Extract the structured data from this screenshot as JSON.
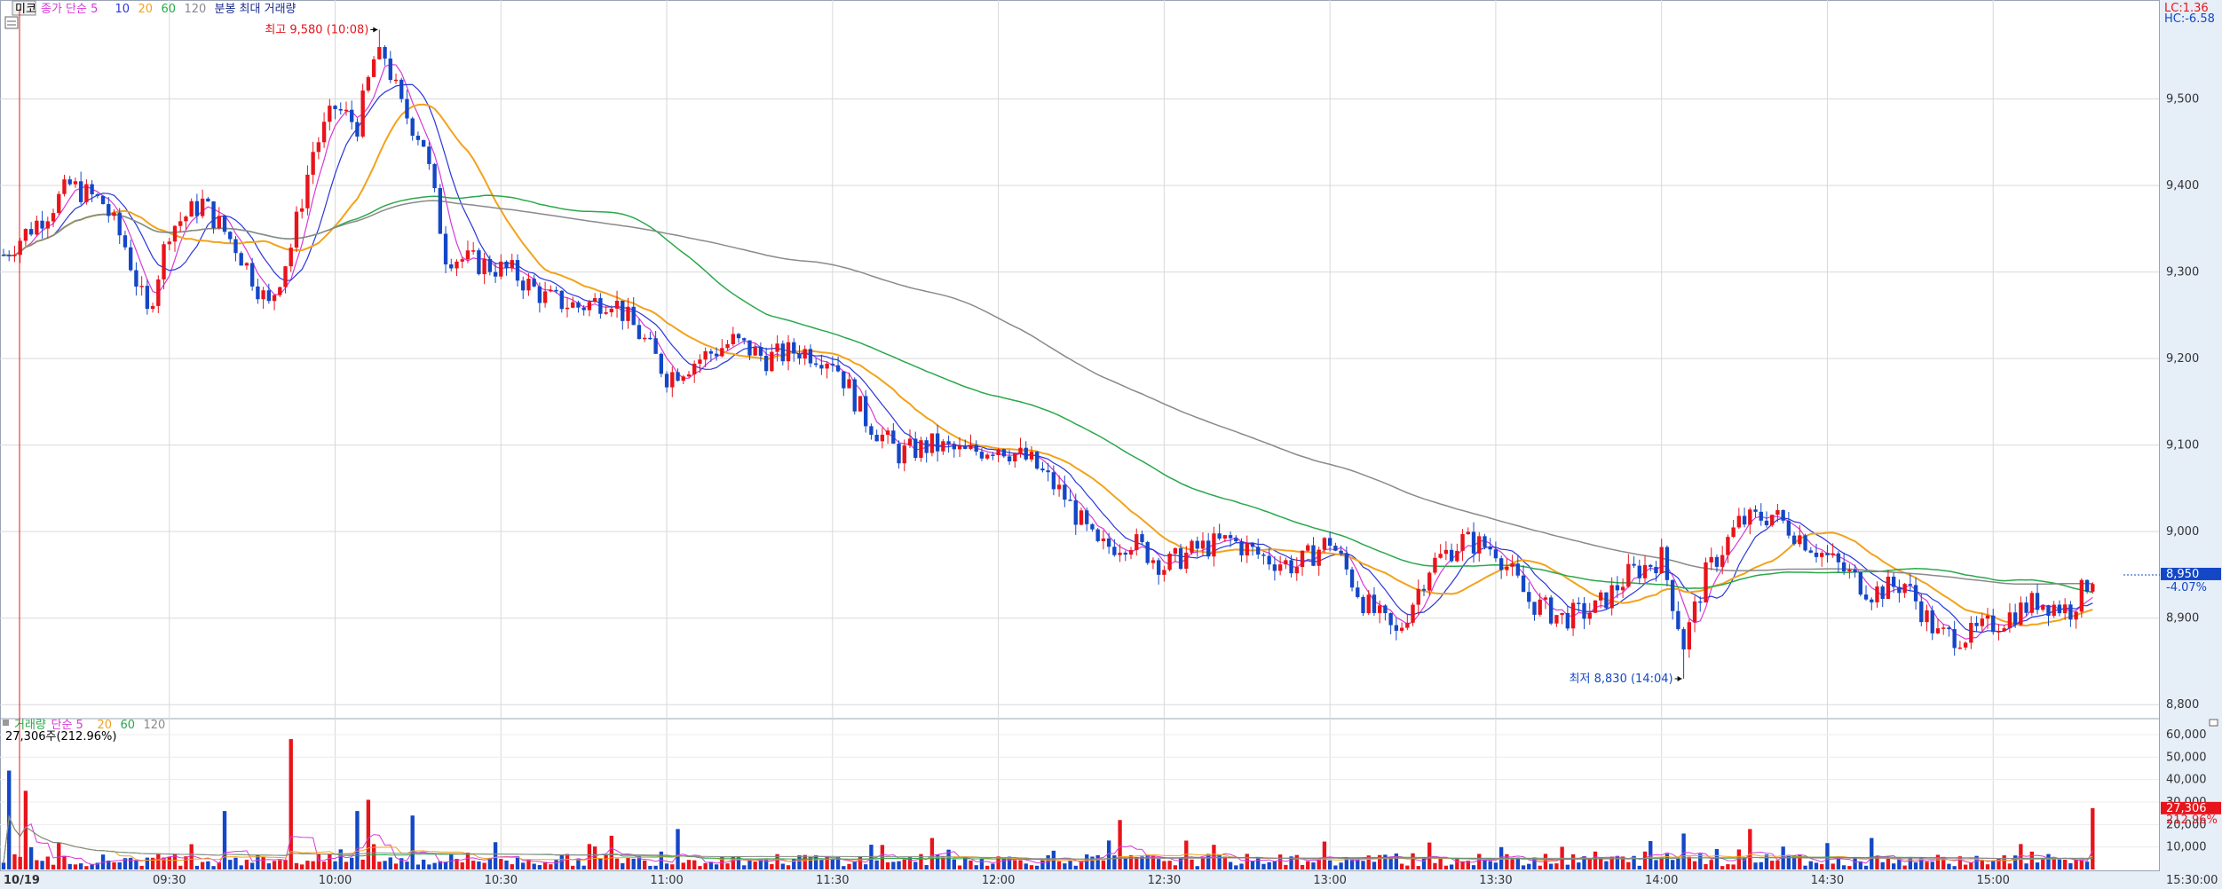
{
  "top_legend": {
    "tag": "미코",
    "items": [
      {
        "text": "종가 단순 5",
        "color": "#d63ad6"
      },
      {
        "text": "10",
        "color": "#2a36d8"
      },
      {
        "text": "20",
        "color": "#f2a31c"
      },
      {
        "text": "60",
        "color": "#2aa84a"
      },
      {
        "text": "120",
        "color": "#8a8a8a"
      },
      {
        "text": "분봉 최대 거래량",
        "color": "#1a2a8a"
      }
    ]
  },
  "right_top": {
    "lc": "LC:1.36",
    "hc": "HC:-6.58"
  },
  "price_badge": {
    "value": "8,950",
    "change": "-4.07%"
  },
  "volume_badge": {
    "value": "27,306",
    "change": "212.96%"
  },
  "annotations": {
    "high": {
      "text": "최고 9,580 (10:08)",
      "x": "10:08",
      "y": 9580
    },
    "low": {
      "text": "최저 8,830 (14:04)",
      "x": "14:04",
      "y": 8830
    }
  },
  "volume_legend": {
    "items": [
      {
        "text": "거래량",
        "color": "#2aa84a"
      },
      {
        "text": "단순 5",
        "color": "#d63ad6"
      },
      {
        "text": "20",
        "color": "#f2a31c"
      },
      {
        "text": "60",
        "color": "#2aa84a"
      },
      {
        "text": "120",
        "color": "#8a8a8a"
      }
    ],
    "current": "27,306주(212.96%)"
  },
  "colors": {
    "up": "#e8141b",
    "down": "#1447c6",
    "grid": "#d9d9d9",
    "axis_bg": "#e6eef8"
  },
  "chart_data": [
    {
      "type": "candlestick",
      "title": "",
      "x_range": [
        "09:00",
        "15:30"
      ],
      "ylim": [
        8790,
        9600
      ],
      "y_ticks": [
        8800,
        8900,
        9000,
        9100,
        9200,
        9300,
        9400,
        9500
      ],
      "y_tick_labels": [
        "8,800",
        "8,900",
        "9,000",
        "9,100",
        "9,200",
        "9,300",
        "9,400",
        "9,500"
      ],
      "x_ticks": [
        "09:30",
        "10:00",
        "10:30",
        "11:00",
        "11:30",
        "12:00",
        "12:30",
        "13:00",
        "13:30",
        "14:00",
        "14:30",
        "15:00"
      ],
      "x_labels_extra": {
        "start": "10/19",
        "end": "15:30:00"
      },
      "grid": true,
      "series_shape": [
        [
          "09:00",
          9320
        ],
        [
          "09:08",
          9370
        ],
        [
          "09:12",
          9400
        ],
        [
          "09:18",
          9380
        ],
        [
          "09:22",
          9330
        ],
        [
          "09:26",
          9250
        ],
        [
          "09:30",
          9350
        ],
        [
          "09:36",
          9380
        ],
        [
          "09:42",
          9330
        ],
        [
          "09:48",
          9260
        ],
        [
          "09:52",
          9330
        ],
        [
          "09:56",
          9440
        ],
        [
          "10:00",
          9490
        ],
        [
          "10:04",
          9470
        ],
        [
          "10:08",
          9570
        ],
        [
          "10:12",
          9490
        ],
        [
          "10:16",
          9450
        ],
        [
          "10:20",
          9320
        ],
        [
          "10:26",
          9310
        ],
        [
          "10:32",
          9300
        ],
        [
          "10:38",
          9270
        ],
        [
          "10:44",
          9260
        ],
        [
          "10:50",
          9270
        ],
        [
          "10:56",
          9220
        ],
        [
          "11:00",
          9180
        ],
        [
          "11:06",
          9200
        ],
        [
          "11:12",
          9220
        ],
        [
          "11:18",
          9200
        ],
        [
          "11:24",
          9210
        ],
        [
          "11:30",
          9200
        ],
        [
          "11:36",
          9130
        ],
        [
          "11:42",
          9090
        ],
        [
          "11:48",
          9100
        ],
        [
          "11:54",
          9090
        ],
        [
          "12:00",
          9100
        ],
        [
          "12:06",
          9080
        ],
        [
          "12:12",
          9040
        ],
        [
          "12:18",
          8980
        ],
        [
          "12:24",
          8990
        ],
        [
          "12:30",
          8960
        ],
        [
          "12:36",
          8980
        ],
        [
          "12:42",
          8990
        ],
        [
          "12:48",
          8970
        ],
        [
          "12:54",
          8960
        ],
        [
          "13:00",
          8990
        ],
        [
          "13:06",
          8920
        ],
        [
          "13:12",
          8880
        ],
        [
          "13:18",
          8960
        ],
        [
          "13:24",
          8990
        ],
        [
          "13:30",
          8980
        ],
        [
          "13:36",
          8920
        ],
        [
          "13:42",
          8900
        ],
        [
          "13:48",
          8910
        ],
        [
          "13:54",
          8950
        ],
        [
          "14:00",
          8970
        ],
        [
          "14:04",
          8870
        ],
        [
          "14:08",
          8950
        ],
        [
          "14:14",
          9010
        ],
        [
          "14:20",
          9020
        ],
        [
          "14:26",
          8990
        ],
        [
          "14:32",
          8960
        ],
        [
          "14:38",
          8930
        ],
        [
          "14:44",
          8940
        ],
        [
          "14:50",
          8880
        ],
        [
          "14:56",
          8880
        ],
        [
          "15:02",
          8900
        ],
        [
          "15:08",
          8920
        ],
        [
          "15:14",
          8910
        ],
        [
          "15:18",
          8950
        ]
      ]
    },
    {
      "type": "bar",
      "title": "",
      "ylim": [
        0,
        60000
      ],
      "y_ticks": [
        10000,
        20000,
        30000,
        40000,
        50000,
        60000
      ],
      "y_tick_labels": [
        "10,000",
        "20,000",
        "30,000",
        "40,000",
        "50,000",
        "60,000"
      ],
      "spikes": [
        [
          "09:01",
          44000
        ],
        [
          "09:04",
          35000
        ],
        [
          "09:40",
          26000
        ],
        [
          "09:52",
          58000
        ],
        [
          "10:04",
          26000
        ],
        [
          "10:06",
          31000
        ],
        [
          "10:14",
          24000
        ],
        [
          "10:50",
          15000
        ],
        [
          "11:02",
          18000
        ],
        [
          "11:48",
          14000
        ],
        [
          "12:22",
          22000
        ],
        [
          "13:18",
          12000
        ],
        [
          "14:04",
          16000
        ],
        [
          "14:16",
          18000
        ],
        [
          "14:38",
          14000
        ],
        [
          "15:18",
          27306
        ]
      ]
    }
  ]
}
